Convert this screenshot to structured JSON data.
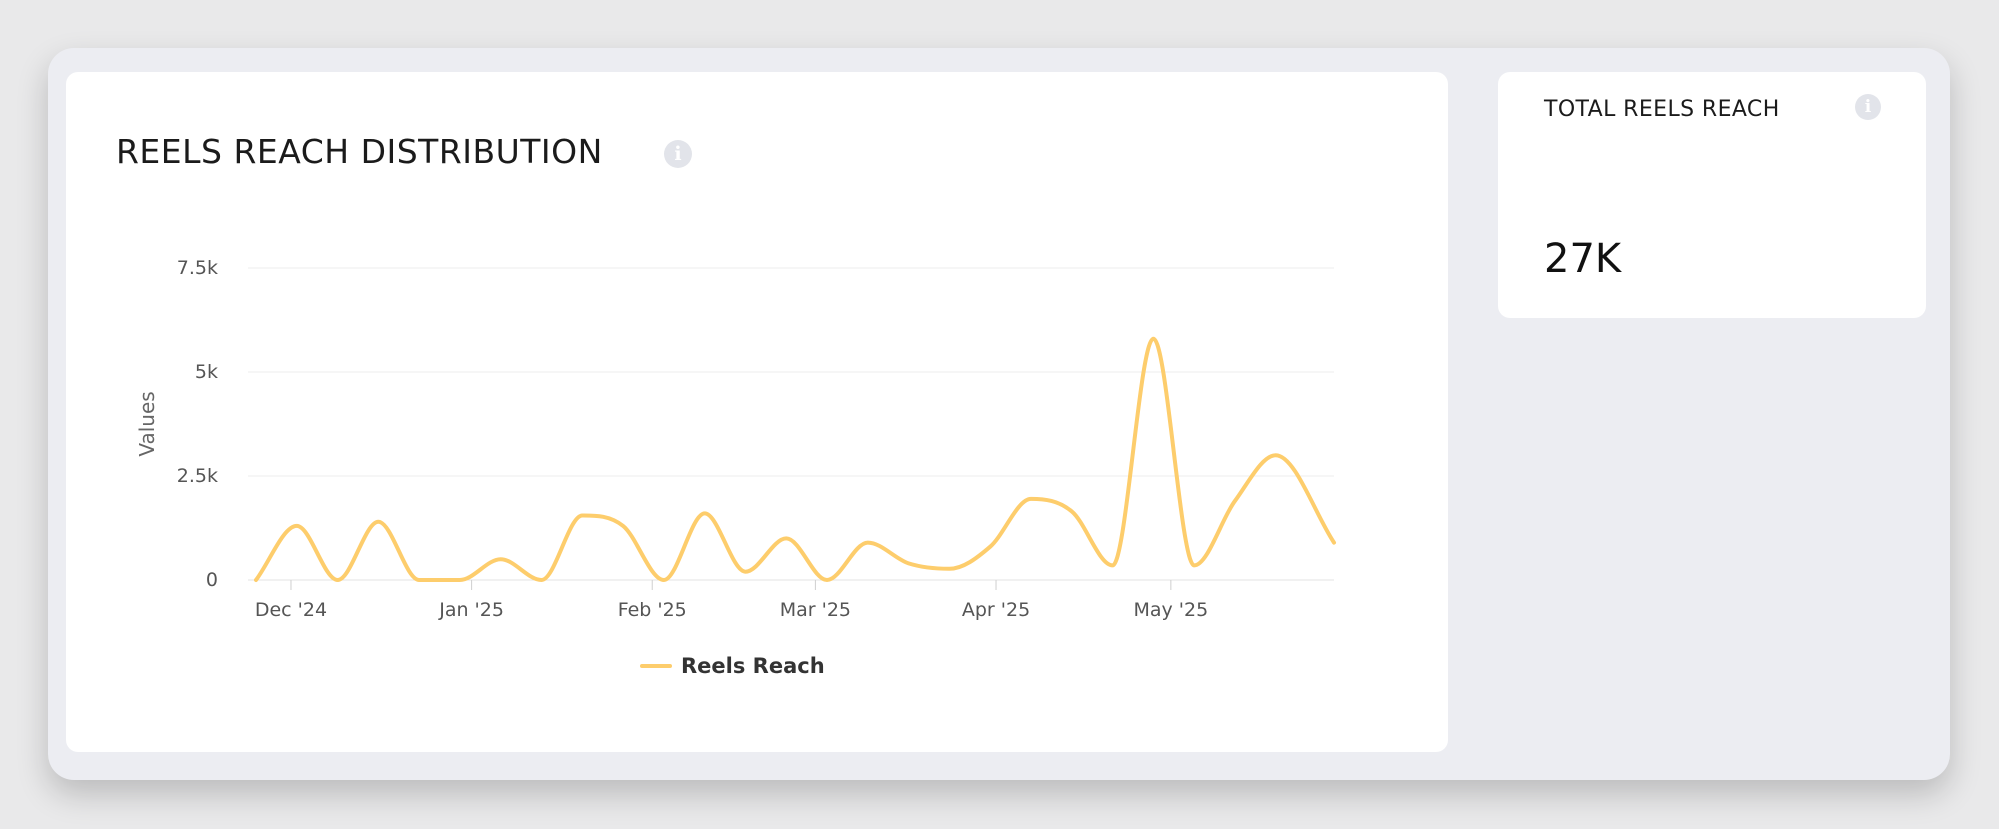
{
  "colors": {
    "series": "#fdcd6c",
    "grid": "#eeeeee",
    "axis_text": "#555555"
  },
  "info_icon_glyph": "i",
  "reach_card": {
    "title": "REELS REACH DISTRIBUTION"
  },
  "total_card": {
    "label": "TOTAL REELS REACH",
    "value": "27K"
  },
  "chart_data": {
    "type": "line",
    "title": "REELS REACH DISTRIBUTION",
    "xlabel": "",
    "ylabel": "Values",
    "ylim": [
      0,
      7500
    ],
    "yticks": [
      0,
      2500,
      5000,
      7500
    ],
    "ytick_labels": [
      "0",
      "2.5k",
      "5k",
      "7.5k"
    ],
    "xlim": [
      "2024-11-25",
      "2025-05-29"
    ],
    "xticks": [
      "2024-12-01",
      "2025-01-01",
      "2025-02-01",
      "2025-03-01",
      "2025-04-01",
      "2025-05-01"
    ],
    "xtick_labels": [
      "Dec '24",
      "Jan '25",
      "Feb '25",
      "Mar '25",
      "Apr '25",
      "May '25"
    ],
    "grid": true,
    "legend": "bottom-center",
    "series": [
      {
        "name": "Reels Reach",
        "x": [
          "2024-11-25",
          "2024-12-02",
          "2024-12-09",
          "2024-12-16",
          "2024-12-23",
          "2024-12-30",
          "2025-01-06",
          "2025-01-13",
          "2025-01-20",
          "2025-01-27",
          "2025-02-03",
          "2025-02-10",
          "2025-02-17",
          "2025-02-24",
          "2025-03-03",
          "2025-03-10",
          "2025-03-17",
          "2025-03-24",
          "2025-03-31",
          "2025-04-07",
          "2025-04-14",
          "2025-04-21",
          "2025-04-28",
          "2025-05-05",
          "2025-05-12",
          "2025-05-19",
          "2025-05-29"
        ],
        "values": [
          0,
          1300,
          0,
          1400,
          0,
          0,
          500,
          0,
          1550,
          1300,
          0,
          1600,
          200,
          1000,
          0,
          900,
          400,
          270,
          800,
          1950,
          1650,
          350,
          5800,
          350,
          1900,
          3000,
          900
        ]
      }
    ]
  }
}
